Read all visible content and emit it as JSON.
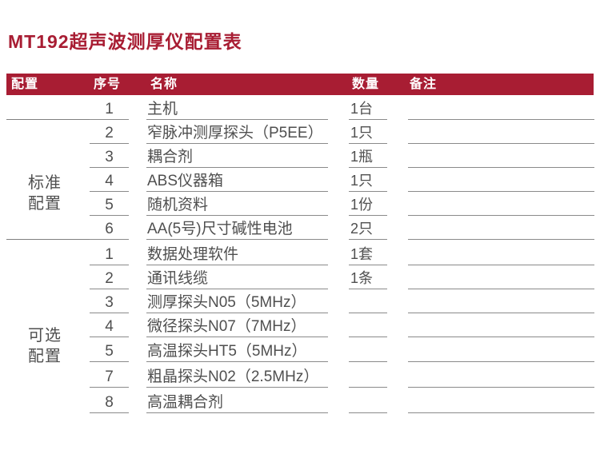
{
  "page": {
    "title": "MT192超声波测厚仪配置表"
  },
  "colors": {
    "accent": "#a81d33",
    "text": "#4f4f4f",
    "line": "#8a8a8a",
    "background": "#ffffff"
  },
  "table": {
    "headers": {
      "config": "配置",
      "index": "序号",
      "name": "名称",
      "qty": "数量",
      "remark": "备注"
    },
    "sections": [
      {
        "label": "标准配置",
        "label_lines": [
          "标准",
          "配置"
        ],
        "rows": [
          {
            "index": "1",
            "name": "主机",
            "qty": "1台",
            "remark": ""
          },
          {
            "index": "2",
            "name": "窄脉冲测厚探头（P5EE）",
            "qty": "1只",
            "remark": ""
          },
          {
            "index": "3",
            "name": "耦合剂",
            "qty": "1瓶",
            "remark": ""
          },
          {
            "index": "4",
            "name": "ABS仪器箱",
            "qty": "1只",
            "remark": ""
          },
          {
            "index": "5",
            "name": "随机资料",
            "qty": "1份",
            "remark": ""
          },
          {
            "index": "6",
            "name": "AA(5号)尺寸碱性电池",
            "qty": "2只",
            "remark": ""
          }
        ]
      },
      {
        "label": "可选配置",
        "label_lines": [
          "可选",
          "配置"
        ],
        "rows": [
          {
            "index": "1",
            "name": "数据处理软件",
            "qty": "1套",
            "remark": ""
          },
          {
            "index": "2",
            "name": "通讯线缆",
            "qty": "1条",
            "remark": ""
          },
          {
            "index": "3",
            "name": "测厚探头N05（5MHz）",
            "qty": "",
            "remark": ""
          },
          {
            "index": "4",
            "name": "微径探头N07（7MHz）",
            "qty": "",
            "remark": ""
          },
          {
            "index": "5",
            "name": "高温探头HT5（5MHz）",
            "qty": "",
            "remark": ""
          },
          {
            "index": "7",
            "name": "粗晶探头N02（2.5MHz）",
            "qty": "",
            "remark": ""
          },
          {
            "index": "8",
            "name": "高温耦合剂",
            "qty": "",
            "remark": ""
          }
        ]
      }
    ]
  }
}
